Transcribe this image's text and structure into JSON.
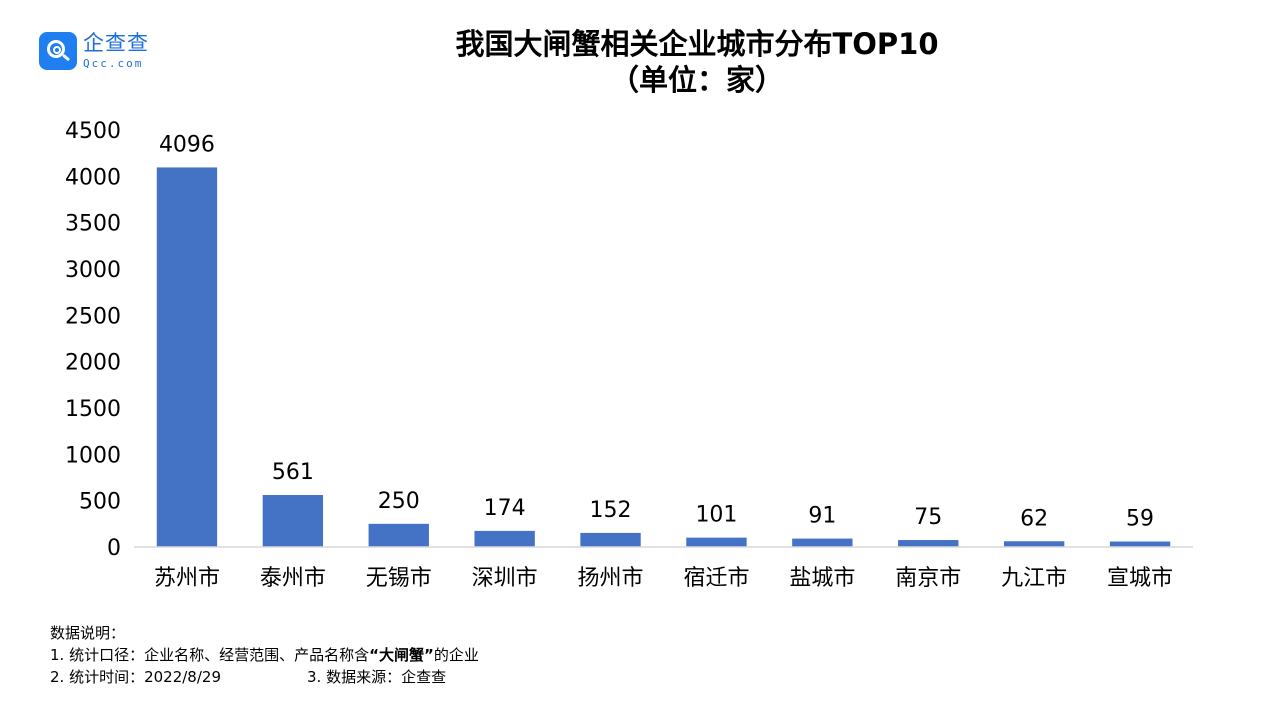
{
  "logo": {
    "cn": "企查查",
    "en": "Qcc.com"
  },
  "title_line1": "我国大闸蟹相关企业城市分布TOP10",
  "title_line2": "（单位：家）",
  "notes": {
    "heading": "数据说明：",
    "line1_prefix": "1. 统计口径：企业名称、经营范围、产品名称含",
    "line1_quote": "“大闸蟹”",
    "line1_suffix": "的企业",
    "line2_a": "2. 统计时间：2022/8/29",
    "line2_b": "3. 数据来源：企查查"
  },
  "colors": {
    "bar": "#4472c4",
    "axis": "#d9d9d9",
    "text": "#000000",
    "brand": "#1f7ff0"
  },
  "chart_data": {
    "type": "bar",
    "title": "我国大闸蟹相关企业城市分布TOP10",
    "subtitle": "（单位：家）",
    "categories": [
      "苏州市",
      "泰州市",
      "无锡市",
      "深圳市",
      "扬州市",
      "宿迁市",
      "盐城市",
      "南京市",
      "九江市",
      "宣城市"
    ],
    "values": [
      4096,
      561,
      250,
      174,
      152,
      101,
      91,
      75,
      62,
      59
    ],
    "ylim": [
      0,
      4500
    ],
    "yticks": [
      0,
      500,
      1000,
      1500,
      2000,
      2500,
      3000,
      3500,
      4000,
      4500
    ],
    "data_labels": true,
    "grid": false,
    "legend": "none"
  }
}
